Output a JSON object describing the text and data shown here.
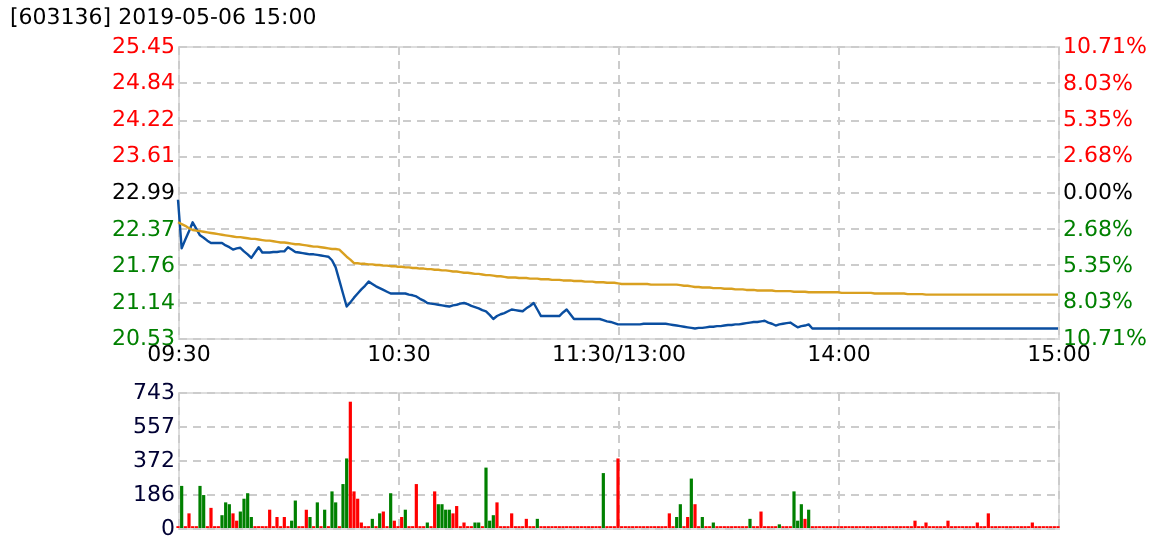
{
  "chart_data": [
    {
      "type": "line",
      "title": "[603136] 2019-05-06 15:00",
      "categories": [
        "09:30",
        null,
        null,
        null,
        null,
        null,
        null,
        null,
        null,
        null,
        null,
        null,
        null,
        null,
        null,
        null,
        null,
        null,
        null,
        null,
        null,
        null,
        null,
        null,
        null,
        null,
        null,
        null,
        null,
        null,
        null,
        null,
        null,
        null,
        null,
        null,
        null,
        null,
        null,
        null,
        null,
        null,
        null,
        null,
        null,
        null,
        null,
        null,
        null,
        null,
        null,
        null,
        null,
        null,
        null,
        null,
        null,
        null,
        null,
        null,
        "10:30",
        null,
        null,
        null,
        null,
        null,
        null,
        null,
        null,
        null,
        null,
        null,
        null,
        null,
        null,
        null,
        null,
        null,
        null,
        null,
        null,
        null,
        null,
        null,
        null,
        null,
        null,
        null,
        null,
        null,
        null,
        null,
        null,
        null,
        null,
        null,
        null,
        null,
        null,
        null,
        null,
        null,
        null,
        null,
        null,
        null,
        null,
        null,
        null,
        null,
        null,
        null,
        null,
        null,
        null,
        null,
        null,
        null,
        null,
        null,
        "11:30/13:00",
        null,
        null,
        null,
        null,
        null,
        null,
        null,
        null,
        null,
        null,
        null,
        null,
        null,
        null,
        null,
        null,
        null,
        null,
        null,
        null,
        null,
        null,
        null,
        null,
        null,
        null,
        null,
        null,
        null,
        null,
        null,
        null,
        null,
        null,
        null,
        null,
        null,
        null,
        null,
        null,
        null,
        null,
        null,
        null,
        null,
        null,
        null,
        null,
        null,
        null,
        null,
        null,
        null,
        null,
        null,
        null,
        null,
        null,
        null,
        "14:00",
        null,
        null,
        null,
        null,
        null,
        null,
        null,
        null,
        null,
        null,
        null,
        null,
        null,
        null,
        null,
        null,
        null,
        null,
        null,
        null,
        null,
        null,
        null,
        null,
        null,
        null,
        null,
        null,
        null,
        null,
        null,
        null,
        null,
        null,
        null,
        null,
        null,
        null,
        null,
        null,
        null,
        null,
        null,
        null,
        null,
        null,
        null,
        null,
        null,
        null,
        null,
        null,
        null,
        null,
        null,
        null,
        null,
        null,
        null,
        "15:00"
      ],
      "ylim": [
        20.53,
        25.45
      ],
      "yticks": [
        20.53,
        21.14,
        21.76,
        22.37,
        22.99,
        23.61,
        24.22,
        24.84,
        25.45
      ],
      "y2lim": [
        -10.71,
        10.71
      ],
      "y2ticks": [
        {
          "value": -10.71,
          "label": "10.71%"
        },
        {
          "value": -8.03,
          "label": "8.03%"
        },
        {
          "value": -5.35,
          "label": "5.35%"
        },
        {
          "value": -2.68,
          "label": "2.68%"
        },
        {
          "value": 0,
          "label": "0.00%"
        },
        {
          "value": 2.68,
          "label": "2.68%"
        },
        {
          "value": 5.35,
          "label": "5.35%"
        },
        {
          "value": 8.03,
          "label": "8.03%"
        },
        {
          "value": 10.71,
          "label": "10.71%"
        }
      ],
      "grid": true,
      "marker": "none",
      "line_style": "solid",
      "series": [
        {
          "type": "line",
          "color": "#0a4ea0",
          "values": [
            22.86,
            22.04,
            22.19,
            22.33,
            22.48,
            22.37,
            22.26,
            22.22,
            22.17,
            22.13,
            22.13,
            22.13,
            22.13,
            22.09,
            22.06,
            22.02,
            22.04,
            22.05,
            21.99,
            21.94,
            21.88,
            21.97,
            22.06,
            21.97,
            21.97,
            21.97,
            21.98,
            21.98,
            21.99,
            21.99,
            22.06,
            22.02,
            21.98,
            21.97,
            21.96,
            21.95,
            21.94,
            21.94,
            21.93,
            21.92,
            21.91,
            21.9,
            21.84,
            21.72,
            21.5,
            21.28,
            21.06,
            21.13,
            21.21,
            21.28,
            21.35,
            21.41,
            21.48,
            21.44,
            21.4,
            21.37,
            21.34,
            21.31,
            21.28,
            21.28,
            21.28,
            21.28,
            21.28,
            21.26,
            21.25,
            21.23,
            21.19,
            21.16,
            21.12,
            21.11,
            21.1,
            21.09,
            21.08,
            21.07,
            21.06,
            21.08,
            21.09,
            21.11,
            21.12,
            21.1,
            21.07,
            21.05,
            21.03,
            21.0,
            20.98,
            20.92,
            20.85,
            20.9,
            20.93,
            20.95,
            20.98,
            21.01,
            21.0,
            20.99,
            20.98,
            21.03,
            21.07,
            21.12,
            21.01,
            20.9,
            20.9,
            20.9,
            20.9,
            20.9,
            20.9,
            20.96,
            21.01,
            20.93,
            20.85,
            20.85,
            20.85,
            20.85,
            20.85,
            20.85,
            20.85,
            20.85,
            20.83,
            20.81,
            20.8,
            20.78,
            20.76,
            20.76,
            20.76,
            20.76,
            20.76,
            20.76,
            20.76,
            20.77,
            20.77,
            20.77,
            20.77,
            20.77,
            20.77,
            20.77,
            20.76,
            20.75,
            20.74,
            20.73,
            20.72,
            20.71,
            20.7,
            20.69,
            20.7,
            20.7,
            20.71,
            20.72,
            20.72,
            20.73,
            20.73,
            20.74,
            20.75,
            20.75,
            20.76,
            20.76,
            20.77,
            20.78,
            20.79,
            20.8,
            20.8,
            20.81,
            20.82,
            20.79,
            20.77,
            20.74,
            20.76,
            20.77,
            20.78,
            20.79,
            20.75,
            20.71,
            20.73,
            20.74,
            20.76,
            20.69,
            20.69,
            20.69,
            20.69,
            20.69,
            20.69,
            20.69,
            20.69,
            20.69,
            20.69,
            20.69,
            20.69,
            20.69,
            20.69,
            20.69,
            20.69,
            20.69,
            20.69,
            20.69,
            20.69,
            20.69,
            20.69,
            20.69,
            20.69,
            20.69,
            20.69,
            20.69,
            20.69,
            20.69,
            20.69,
            20.69,
            20.69,
            20.69,
            20.69,
            20.69,
            20.69,
            20.69,
            20.69,
            20.69,
            20.69,
            20.69,
            20.69,
            20.69,
            20.69,
            20.69,
            20.69,
            20.69,
            20.69,
            20.69,
            20.69,
            20.69,
            20.69,
            20.69,
            20.69,
            20.69,
            20.69,
            20.69,
            20.69,
            20.69,
            20.69,
            20.69,
            20.69,
            20.69,
            20.69,
            20.69,
            20.69,
            20.69,
            20.69
          ]
        },
        {
          "type": "line",
          "color": "#d9a020",
          "values": [
            22.48,
            22.45,
            22.42,
            22.38,
            22.35,
            22.34,
            22.33,
            22.32,
            22.31,
            22.3,
            22.29,
            22.28,
            22.27,
            22.26,
            22.25,
            22.24,
            22.23,
            22.23,
            22.22,
            22.21,
            22.2,
            22.2,
            22.19,
            22.18,
            22.17,
            22.17,
            22.16,
            22.15,
            22.14,
            22.14,
            22.13,
            22.12,
            22.11,
            22.11,
            22.1,
            22.09,
            22.08,
            22.07,
            22.07,
            22.06,
            22.05,
            22.04,
            22.03,
            22.03,
            22.02,
            21.96,
            21.9,
            21.85,
            21.79,
            21.79,
            21.78,
            21.78,
            21.77,
            21.77,
            21.76,
            21.76,
            21.75,
            21.75,
            21.74,
            21.74,
            21.73,
            21.73,
            21.72,
            21.72,
            21.71,
            21.71,
            21.7,
            21.7,
            21.69,
            21.69,
            21.68,
            21.68,
            21.67,
            21.67,
            21.66,
            21.65,
            21.65,
            21.64,
            21.63,
            21.63,
            21.62,
            21.61,
            21.61,
            21.6,
            21.59,
            21.59,
            21.58,
            21.57,
            21.57,
            21.56,
            21.55,
            21.55,
            21.55,
            21.54,
            21.54,
            21.54,
            21.53,
            21.53,
            21.53,
            21.52,
            21.52,
            21.52,
            21.51,
            21.51,
            21.51,
            21.5,
            21.5,
            21.5,
            21.49,
            21.49,
            21.49,
            21.48,
            21.48,
            21.48,
            21.47,
            21.47,
            21.47,
            21.46,
            21.46,
            21.46,
            21.45,
            21.44,
            21.44,
            21.44,
            21.44,
            21.44,
            21.44,
            21.44,
            21.44,
            21.43,
            21.43,
            21.43,
            21.43,
            21.43,
            21.43,
            21.43,
            21.43,
            21.42,
            21.41,
            21.41,
            21.4,
            21.39,
            21.39,
            21.38,
            21.38,
            21.38,
            21.37,
            21.37,
            21.37,
            21.36,
            21.36,
            21.36,
            21.35,
            21.35,
            21.35,
            21.34,
            21.34,
            21.34,
            21.33,
            21.33,
            21.33,
            21.33,
            21.33,
            21.32,
            21.32,
            21.32,
            21.32,
            21.32,
            21.31,
            21.31,
            21.31,
            21.31,
            21.3,
            21.3,
            21.3,
            21.3,
            21.3,
            21.3,
            21.3,
            21.3,
            21.3,
            21.29,
            21.29,
            21.29,
            21.29,
            21.29,
            21.29,
            21.29,
            21.29,
            21.29,
            21.28,
            21.28,
            21.28,
            21.28,
            21.28,
            21.28,
            21.28,
            21.28,
            21.28,
            21.27,
            21.27,
            21.27,
            21.27,
            21.27,
            21.26,
            21.26,
            21.26,
            21.26,
            21.26,
            21.26,
            21.26,
            21.26,
            21.26,
            21.26,
            21.26,
            21.26,
            21.26,
            21.26,
            21.26,
            21.26,
            21.26,
            21.26,
            21.26,
            21.26,
            21.26,
            21.26,
            21.26,
            21.26,
            21.26,
            21.26,
            21.26,
            21.26,
            21.26,
            21.26,
            21.26,
            21.26,
            21.26,
            21.26,
            21.26,
            21.26,
            21.26
          ]
        }
      ]
    },
    {
      "type": "bar",
      "categories": [
        null,
        null,
        null,
        null,
        null,
        null,
        null,
        null,
        null,
        null,
        null,
        null,
        null,
        null,
        null,
        null,
        null,
        null,
        null,
        null,
        null,
        null,
        null,
        null,
        null,
        null,
        null,
        null,
        null,
        null,
        null,
        null,
        null,
        null,
        null,
        null,
        null,
        null,
        null,
        null,
        null,
        null,
        null,
        null,
        null,
        null,
        null,
        null,
        null,
        null,
        null,
        null,
        null,
        null,
        null,
        null,
        null,
        null,
        null,
        null,
        null,
        null,
        null,
        null,
        null,
        null,
        null,
        null,
        null,
        null,
        null,
        null,
        null,
        null,
        null,
        null,
        null,
        null,
        null,
        null,
        null,
        null,
        null,
        null,
        null,
        null,
        null,
        null,
        null,
        null,
        null,
        null,
        null,
        null,
        null,
        null,
        null,
        null,
        null,
        null,
        null,
        null,
        null,
        null,
        null,
        null,
        null,
        null,
        null,
        null,
        null,
        null,
        null,
        null,
        null,
        null,
        null,
        null,
        null,
        null,
        null,
        null,
        null,
        null,
        null,
        null,
        null,
        null,
        null,
        null,
        null,
        null,
        null,
        null,
        null,
        null,
        null,
        null,
        null,
        null,
        null,
        null,
        null,
        null,
        null,
        null,
        null,
        null,
        null,
        null,
        null,
        null,
        null,
        null,
        null,
        null,
        null,
        null,
        null,
        null,
        null,
        null,
        null,
        null,
        null,
        null,
        null,
        null,
        null,
        null,
        null,
        null,
        null,
        null,
        null,
        null,
        null,
        null,
        null,
        null,
        null,
        null,
        null,
        null,
        null,
        null,
        null,
        null,
        null,
        null,
        null,
        null,
        null,
        null,
        null,
        null,
        null,
        null,
        null,
        null,
        null,
        null,
        null,
        null,
        null,
        null,
        null,
        null,
        null,
        null,
        null,
        null,
        null,
        null,
        null,
        null,
        null,
        null,
        null,
        null,
        null,
        null,
        null,
        null,
        null,
        null,
        null,
        null,
        null,
        null,
        null,
        null,
        null,
        null,
        null,
        null,
        null,
        null,
        null,
        null,
        null
      ],
      "ylim": [
        0,
        743
      ],
      "yticks": [
        0,
        186,
        372,
        557,
        743
      ],
      "grid": true,
      "tick_labels": "y",
      "series": [
        {
          "color": "#ff0000",
          "values": [
            10,
            null,
            10,
            80,
            10,
            10,
            null,
            null,
            10,
            110,
            10,
            10,
            null,
            null,
            null,
            80,
            40,
            null,
            null,
            null,
            null,
            10,
            10,
            10,
            10,
            100,
            10,
            60,
            10,
            60,
            10,
            null,
            null,
            10,
            10,
            100,
            null,
            10,
            null,
            10,
            null,
            10,
            null,
            null,
            10,
            null,
            null,
            690,
            200,
            160,
            30,
            10,
            10,
            null,
            10,
            null,
            90,
            10,
            null,
            40,
            10,
            60,
            null,
            10,
            10,
            240,
            10,
            10,
            null,
            10,
            200,
            null,
            null,
            null,
            null,
            80,
            120,
            10,
            30,
            10,
            10,
            null,
            null,
            10,
            null,
            null,
            null,
            140,
            10,
            10,
            10,
            80,
            10,
            10,
            10,
            50,
            10,
            10,
            null,
            10,
            10,
            10,
            10,
            10,
            10,
            10,
            10,
            10,
            10,
            10,
            10,
            10,
            10,
            10,
            10,
            10,
            null,
            10,
            10,
            10,
            380,
            10,
            10,
            10,
            10,
            10,
            10,
            10,
            10,
            10,
            10,
            10,
            10,
            10,
            80,
            10,
            null,
            null,
            10,
            60,
            null,
            130,
            10,
            null,
            10,
            10,
            null,
            10,
            10,
            10,
            10,
            10,
            10,
            10,
            10,
            10,
            null,
            10,
            10,
            90,
            10,
            10,
            10,
            10,
            null,
            10,
            10,
            10,
            null,
            null,
            null,
            50,
            null,
            10,
            10,
            10,
            10,
            10,
            10,
            10,
            10,
            10,
            10,
            10,
            10,
            10,
            10,
            10,
            10,
            10,
            10,
            10,
            10,
            10,
            10,
            10,
            10,
            10,
            10,
            10,
            10,
            40,
            10,
            10,
            30,
            10,
            10,
            10,
            10,
            10,
            40,
            10,
            10,
            10,
            10,
            10,
            10,
            10,
            30,
            10,
            10,
            80,
            10,
            10,
            10,
            10,
            10,
            10,
            10,
            10,
            10,
            10,
            10,
            30,
            10,
            10,
            10,
            10,
            10,
            10,
            10
          ]
        },
        {
          "color": "#008000",
          "values": [
            null,
            230,
            null,
            null,
            null,
            null,
            230,
            180,
            null,
            null,
            null,
            null,
            70,
            140,
            130,
            null,
            null,
            90,
            160,
            190,
            60,
            null,
            null,
            null,
            null,
            null,
            null,
            null,
            null,
            null,
            null,
            40,
            150,
            null,
            null,
            null,
            60,
            null,
            140,
            null,
            100,
            null,
            200,
            140,
            null,
            240,
            380,
            null,
            null,
            null,
            null,
            null,
            null,
            50,
            null,
            80,
            null,
            null,
            190,
            null,
            null,
            null,
            100,
            null,
            null,
            null,
            null,
            null,
            30,
            null,
            null,
            130,
            130,
            100,
            100,
            null,
            null,
            null,
            null,
            null,
            null,
            30,
            30,
            null,
            330,
            40,
            70,
            null,
            null,
            null,
            null,
            null,
            null,
            null,
            null,
            null,
            null,
            null,
            50,
            null,
            null,
            null,
            null,
            null,
            null,
            null,
            null,
            null,
            null,
            null,
            null,
            null,
            null,
            null,
            null,
            null,
            300,
            null,
            null,
            null,
            null,
            null,
            null,
            null,
            null,
            null,
            null,
            null,
            null,
            null,
            null,
            null,
            null,
            null,
            null,
            null,
            60,
            130,
            null,
            null,
            270,
            null,
            null,
            60,
            null,
            null,
            30,
            null,
            null,
            null,
            null,
            null,
            null,
            null,
            null,
            null,
            50,
            null,
            null,
            null,
            null,
            null,
            null,
            null,
            20,
            null,
            null,
            null,
            200,
            40,
            130,
            null,
            100,
            null,
            null,
            null,
            null,
            null,
            null,
            null,
            null,
            null,
            null,
            null,
            null,
            null,
            null,
            null,
            null,
            null,
            null,
            null,
            null,
            null,
            null,
            null,
            null,
            null,
            null,
            null,
            null,
            null,
            null,
            null,
            null,
            null,
            null,
            null,
            null,
            null,
            null,
            null,
            null,
            null,
            null,
            null,
            null,
            null,
            null,
            null,
            null,
            null,
            null,
            null,
            null,
            null,
            null,
            null,
            null,
            null,
            null,
            null,
            null,
            null,
            null,
            null,
            null,
            null,
            null,
            null,
            null
          ]
        }
      ]
    }
  ]
}
